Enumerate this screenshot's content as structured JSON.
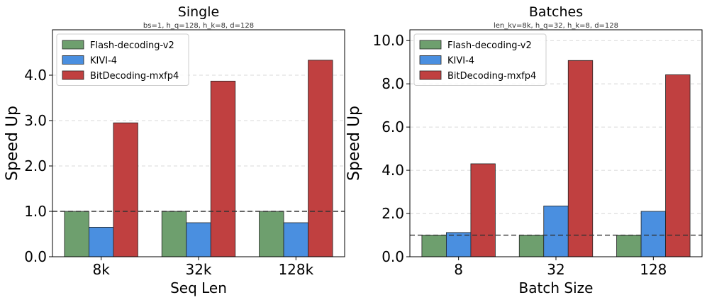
{
  "chart_data": [
    {
      "type": "bar",
      "title": "Single",
      "subtitle": "bs=1, h_q=128, h_k=8, d=128",
      "xlabel": "Seq Len",
      "ylabel": "Speed Up",
      "categories": [
        "8k",
        "32k",
        "128k"
      ],
      "series": [
        {
          "name": "Flash-decoding-v2",
          "color": "#6e9f6e",
          "values": [
            1.0,
            1.0,
            1.0
          ]
        },
        {
          "name": "KIVI-4",
          "color": "#4a8fe0",
          "values": [
            0.65,
            0.75,
            0.75
          ]
        },
        {
          "name": "BitDecoding-mxfp4",
          "color": "#c04040",
          "values": [
            2.95,
            3.87,
            4.33
          ]
        }
      ],
      "ylim": [
        0,
        5.0
      ],
      "yticks": [
        0.0,
        1.0,
        2.0,
        3.0,
        4.0
      ],
      "ytick_labels": [
        "0.0",
        "1.0",
        "2.0",
        "3.0",
        "4.0"
      ],
      "reference_line": 1.0,
      "grid": true,
      "legend_position": "top-left"
    },
    {
      "type": "bar",
      "title": "Batches",
      "subtitle": "len_kv=8k, h_q=32, h_k=8, d=128",
      "xlabel": "Batch Size",
      "ylabel": "Speed Up",
      "categories": [
        "8",
        "32",
        "128"
      ],
      "series": [
        {
          "name": "Flash-decoding-v2",
          "color": "#6e9f6e",
          "values": [
            1.0,
            1.0,
            1.0
          ]
        },
        {
          "name": "KIVI-4",
          "color": "#4a8fe0",
          "values": [
            1.12,
            2.35,
            2.1
          ]
        },
        {
          "name": "BitDecoding-mxfp4",
          "color": "#c04040",
          "values": [
            4.3,
            9.08,
            8.42
          ]
        }
      ],
      "ylim": [
        0,
        10.5
      ],
      "yticks": [
        0.0,
        2.0,
        4.0,
        6.0,
        8.0,
        10.0
      ],
      "ytick_labels": [
        "0.0",
        "2.0",
        "4.0",
        "6.0",
        "8.0",
        "10.0"
      ],
      "reference_line": 1.0,
      "grid": true,
      "legend_position": "top-left"
    }
  ]
}
